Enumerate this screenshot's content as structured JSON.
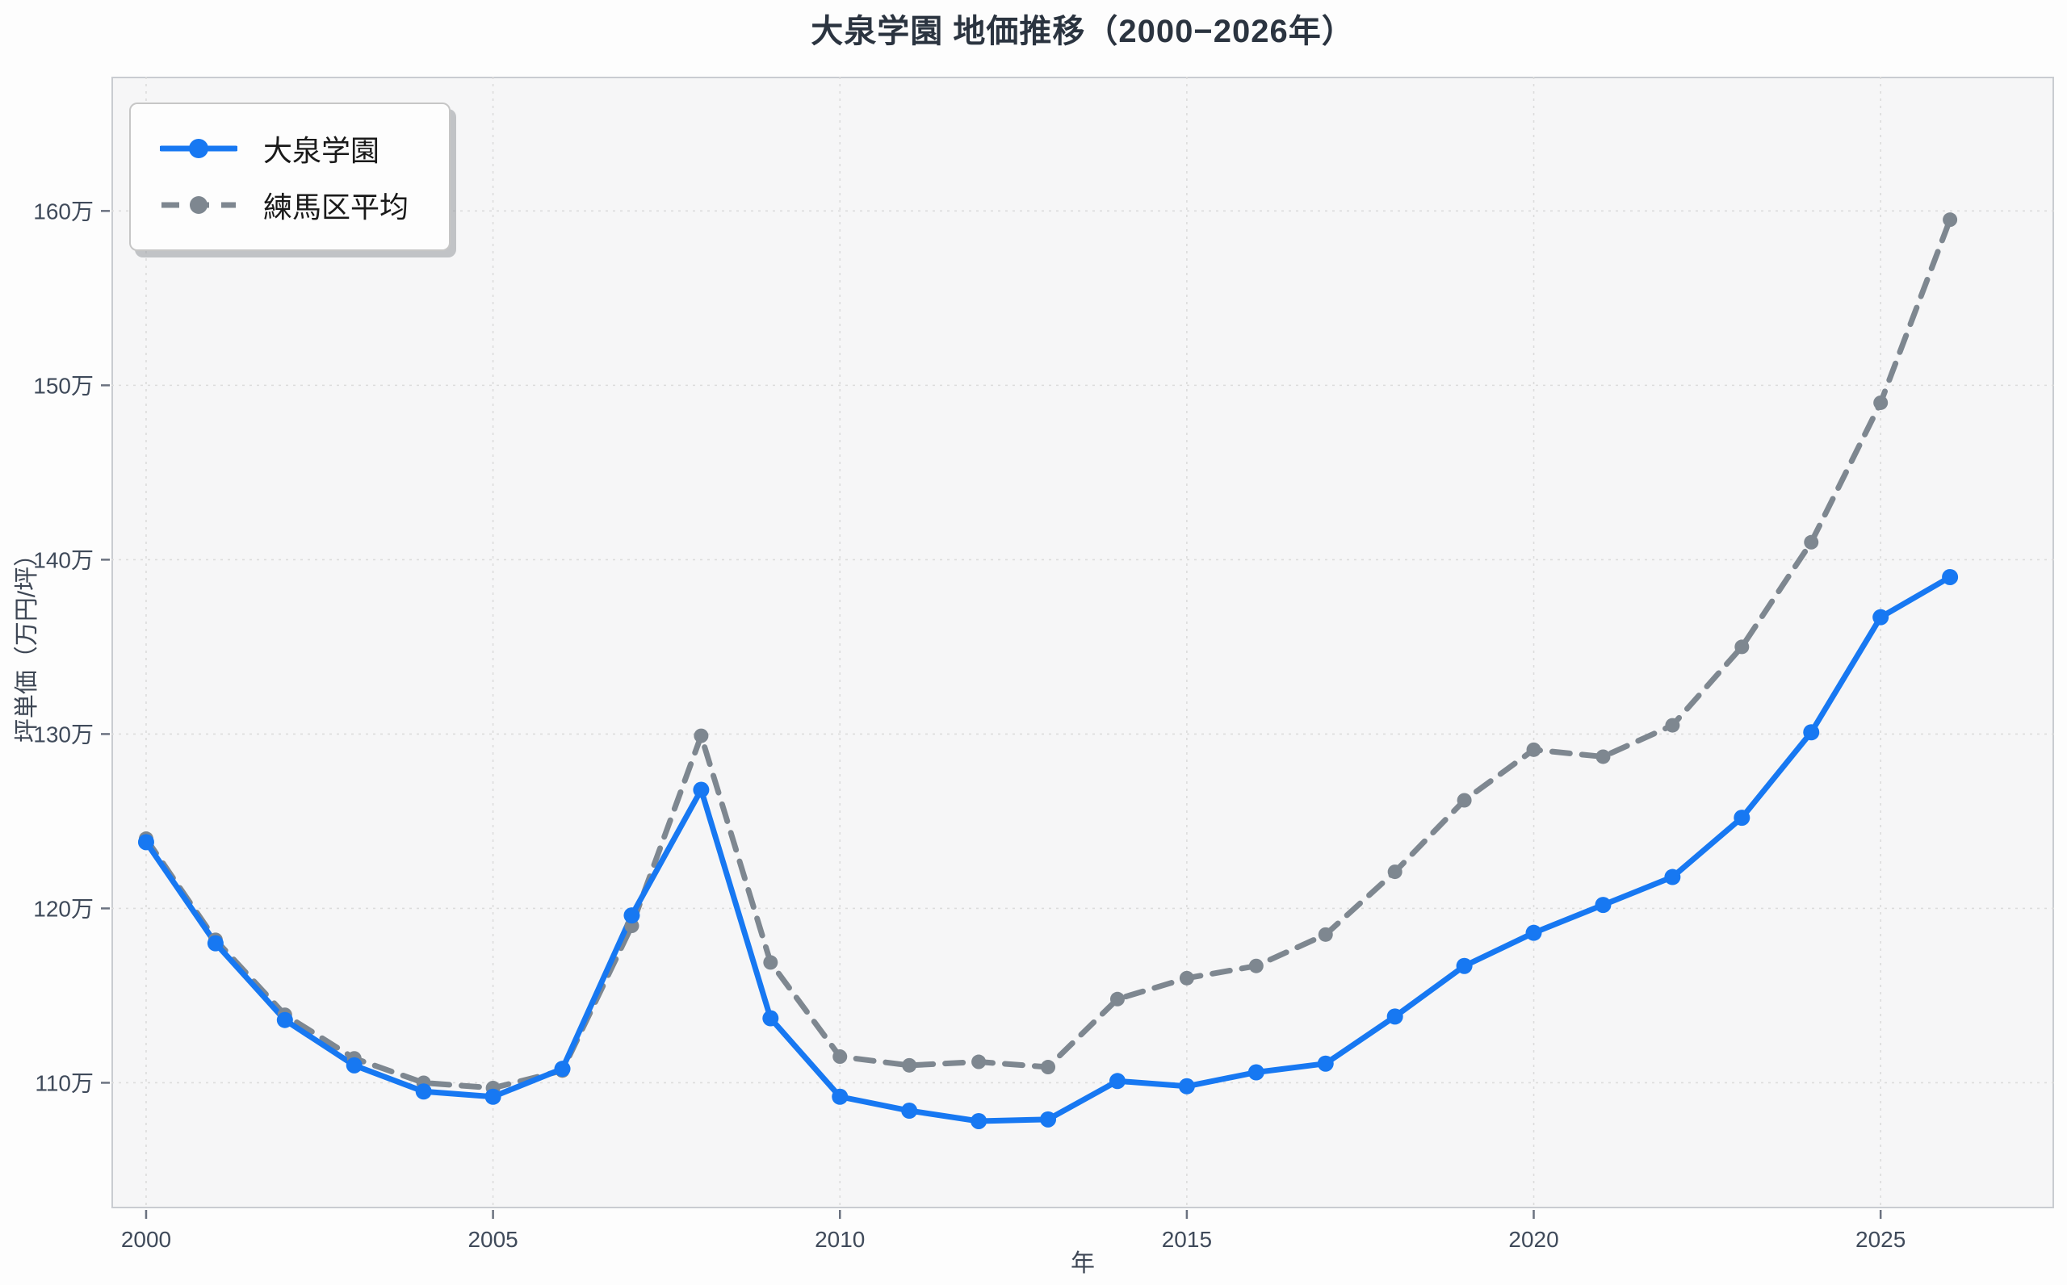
{
  "title": "大泉学園 地価推移（2000−2026年）",
  "legend": {
    "items": [
      {
        "label": "大泉学園"
      },
      {
        "label": "練馬区平均"
      }
    ]
  },
  "axes": {
    "x_label": "年",
    "y_label": "坪単価（万円/坪）",
    "x_tick_labels": [
      "2000",
      "2005",
      "2010",
      "2015",
      "2020",
      "2025"
    ],
    "y_tick_labels": [
      "110万",
      "120万",
      "130万",
      "140万",
      "150万",
      "160万"
    ]
  },
  "colors": {
    "oizumi_blue": "#1778F2",
    "nerima_gray": "#7E8790",
    "panel_bg": "#f6f6f7",
    "grid": "#dcdcdc",
    "spine": "#c9ccd1",
    "tick_text": "#3f4a5a",
    "title_text": "#2b3440"
  },
  "chart_data": {
    "type": "line",
    "title": "大泉学園 地価推移（2000−2026年）",
    "xlabel": "年",
    "ylabel": "坪単価（万円/坪）",
    "unit": "万円/坪",
    "grid": true,
    "legend_position": "upper left",
    "x": [
      2000,
      2001,
      2002,
      2003,
      2004,
      2005,
      2006,
      2007,
      2008,
      2009,
      2010,
      2011,
      2012,
      2013,
      2014,
      2015,
      2016,
      2017,
      2018,
      2019,
      2020,
      2021,
      2022,
      2023,
      2024,
      2025,
      2026
    ],
    "x_ticks": [
      2000,
      2005,
      2010,
      2015,
      2020,
      2025
    ],
    "y_ticks": [
      110,
      120,
      130,
      140,
      150,
      160
    ],
    "xlim": [
      1999.5,
      2027.5
    ],
    "ylim": [
      102.8,
      167.7
    ],
    "series": [
      {
        "name": "大泉学園",
        "color": "#1778F2",
        "line_style": "solid",
        "marker": "circle",
        "values": [
          123.8,
          118.0,
          113.6,
          111.0,
          109.5,
          109.2,
          110.8,
          119.6,
          126.8,
          113.7,
          109.2,
          108.4,
          107.8,
          107.9,
          110.1,
          109.8,
          110.6,
          111.1,
          113.8,
          116.7,
          118.6,
          120.2,
          121.8,
          125.2,
          130.1,
          136.7,
          139.0
        ]
      },
      {
        "name": "練馬区平均",
        "color": "#7E8790",
        "line_style": "dashed",
        "marker": "circle",
        "values": [
          124.0,
          118.2,
          113.9,
          111.4,
          110.0,
          109.7,
          110.7,
          119.0,
          129.9,
          116.9,
          111.5,
          111.0,
          111.2,
          110.9,
          114.8,
          116.0,
          116.7,
          118.5,
          122.1,
          126.2,
          129.1,
          128.7,
          130.5,
          135.0,
          141.0,
          149.0,
          159.5
        ]
      }
    ]
  }
}
